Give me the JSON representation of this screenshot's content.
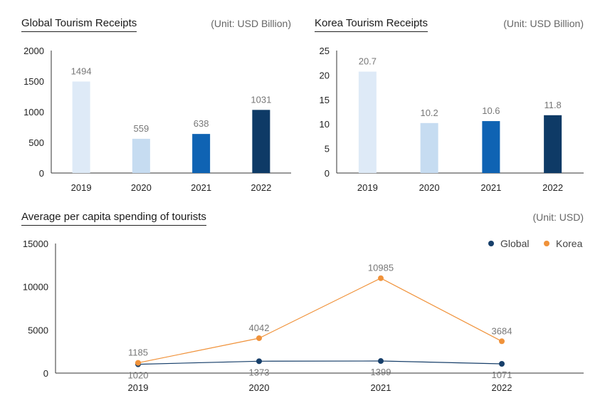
{
  "colors": {
    "bar_2019": "#deeaf7",
    "bar_2020": "#c6dcf1",
    "bar_2021": "#0f63b3",
    "bar_2022": "#0e3a66",
    "line_global": "#173f6a",
    "line_korea": "#f0923a",
    "axis": "#333333",
    "label": "#777777"
  },
  "chart_data": [
    {
      "id": "global_receipts",
      "type": "bar",
      "title": "Global Tourism Receipts",
      "unit": "(Unit: USD Billion)",
      "categories": [
        "2019",
        "2020",
        "2021",
        "2022"
      ],
      "values": [
        1494,
        559,
        638,
        1031
      ],
      "value_labels": [
        "1494",
        "559",
        "638",
        "1031"
      ],
      "ylim": [
        0,
        2000
      ],
      "yticks": [
        "0",
        "500",
        "1000",
        "1500",
        "2000"
      ],
      "ytick_values": [
        0,
        500,
        1000,
        1500,
        2000
      ]
    },
    {
      "id": "korea_receipts",
      "type": "bar",
      "title": "Korea Tourism Receipts",
      "unit": "(Unit: USD Billion)",
      "categories": [
        "2019",
        "2020",
        "2021",
        "2022"
      ],
      "values": [
        20.7,
        10.2,
        10.6,
        11.8
      ],
      "value_labels": [
        "20.7",
        "10.2",
        "10.6",
        "11.8"
      ],
      "ylim": [
        0,
        25
      ],
      "yticks": [
        "0",
        "5",
        "10",
        "15",
        "20",
        "25"
      ],
      "ytick_values": [
        0,
        5,
        10,
        15,
        20,
        25
      ]
    },
    {
      "id": "per_capita_spending",
      "type": "line",
      "title": "Average per capita spending of tourists",
      "unit": "(Unit: USD)",
      "categories": [
        "2019",
        "2020",
        "2021",
        "2022"
      ],
      "series": [
        {
          "name": "Global",
          "values": [
            1020,
            1373,
            1399,
            1071
          ],
          "labels": [
            "1020",
            "1373",
            "1399",
            "1071"
          ]
        },
        {
          "name": "Korea",
          "values": [
            1185,
            4042,
            10985,
            3684
          ],
          "labels": [
            "1185",
            "4042",
            "10985",
            "3684"
          ]
        }
      ],
      "ylim": [
        0,
        15000
      ],
      "yticks": [
        "0",
        "5000",
        "10000",
        "15000"
      ],
      "ytick_values": [
        0,
        5000,
        10000,
        15000
      ],
      "legend": "top-right"
    }
  ]
}
